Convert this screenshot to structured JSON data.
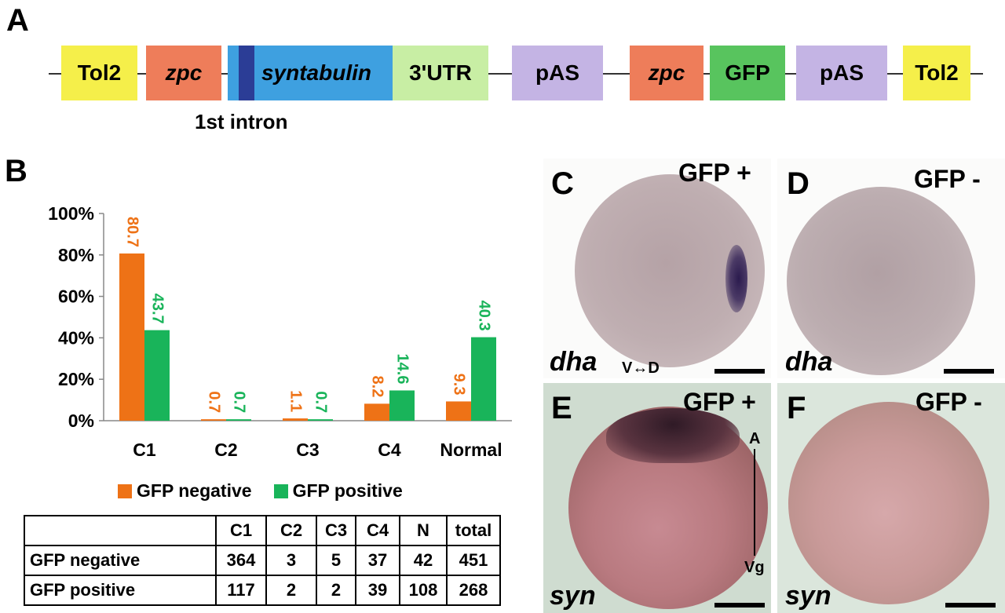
{
  "panels": {
    "a": "A",
    "b": "B",
    "c": "C",
    "d": "D",
    "e": "E",
    "f": "F"
  },
  "construct": {
    "boxes": [
      {
        "label": "Tol2",
        "color": "#f5ef4a",
        "italic": false
      },
      {
        "label": "zpc",
        "color": "#ee7d5a",
        "italic": true
      },
      {
        "label": "syntabulin",
        "color": "#3ea0e0",
        "italic": true
      },
      {
        "label": "3'UTR",
        "color": "#c8eea4",
        "italic": false
      },
      {
        "label": "pAS",
        "color": "#c4b4e4",
        "italic": false
      },
      {
        "label": "zpc",
        "color": "#ee7d5a",
        "italic": true
      },
      {
        "label": "GFP",
        "color": "#58c45e",
        "italic": false
      },
      {
        "label": "pAS",
        "color": "#c4b4e4",
        "italic": false
      },
      {
        "label": "Tol2",
        "color": "#f5ef4a",
        "italic": false
      }
    ],
    "intron_label": "1st intron",
    "intron_color": "#2b3d96"
  },
  "chart_data": {
    "type": "bar",
    "categories": [
      "C1",
      "C2",
      "C3",
      "C4",
      "Normal"
    ],
    "series": [
      {
        "name": "GFP negative",
        "color": "#ee7216",
        "values": [
          80.7,
          0.7,
          1.1,
          8.2,
          9.3
        ]
      },
      {
        "name": "GFP positive",
        "color": "#19b45a",
        "values": [
          43.7,
          0.7,
          0.7,
          14.6,
          40.3
        ]
      }
    ],
    "value_labels": [
      [
        "80.7",
        "0.7",
        "1.1",
        "8.2",
        "9.3"
      ],
      [
        "43.7",
        "0.7",
        "0.7",
        "14.6",
        "40.3"
      ]
    ],
    "ylim": [
      0,
      100
    ],
    "yticks": [
      "0%",
      "20%",
      "40%",
      "60%",
      "80%",
      "100%"
    ],
    "legend_position": "bottom"
  },
  "table": {
    "header": [
      "",
      "C1",
      "C2",
      "C3",
      "C4",
      "N",
      "total"
    ],
    "rows": [
      [
        "GFP negative",
        "364",
        "3",
        "5",
        "37",
        "42",
        "451"
      ],
      [
        "GFP positive",
        "117",
        "2",
        "2",
        "39",
        "108",
        "268"
      ]
    ]
  },
  "micrographs": {
    "c": {
      "tag": "GFP +",
      "gene": "dha",
      "axis": "V↔D"
    },
    "d": {
      "tag": "GFP -",
      "gene": "dha"
    },
    "e": {
      "tag": "GFP +",
      "gene": "syn",
      "axis_top": "A",
      "axis_bottom": "Vg"
    },
    "f": {
      "tag": "GFP -",
      "gene": "syn"
    }
  }
}
